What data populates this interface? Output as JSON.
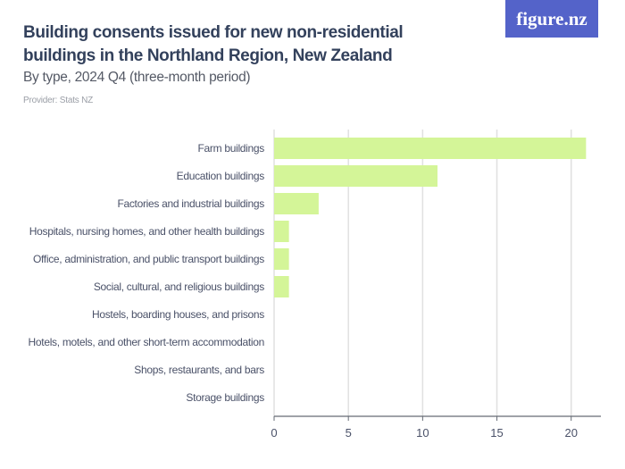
{
  "header": {
    "title": "Building consents issued for new non-residential buildings in the Northland Region, New Zealand",
    "subtitle": "By type, 2024 Q4 (three-month period)",
    "provider": "Provider: Stats NZ",
    "logo": "figure.nz"
  },
  "chart_data": {
    "type": "bar",
    "orientation": "horizontal",
    "categories": [
      "Farm buildings",
      "Education buildings",
      "Factories and industrial buildings",
      "Hospitals, nursing homes, and other health buildings",
      "Office, administration, and public transport buildings",
      "Social, cultural, and religious buildings",
      "Hostels, boarding houses, and prisons",
      "Hotels, motels, and other short-term accommodation",
      "Shops, restaurants, and bars",
      "Storage buildings"
    ],
    "values": [
      21,
      11,
      3,
      1,
      1,
      1,
      0,
      0,
      0,
      0
    ],
    "xlim": [
      0,
      22
    ],
    "xticks": [
      0,
      5,
      10,
      15,
      20
    ],
    "grid": true,
    "bar_color": "#d4f598",
    "grid_color": "#e0e0e0",
    "axis_color": "#666b75"
  }
}
